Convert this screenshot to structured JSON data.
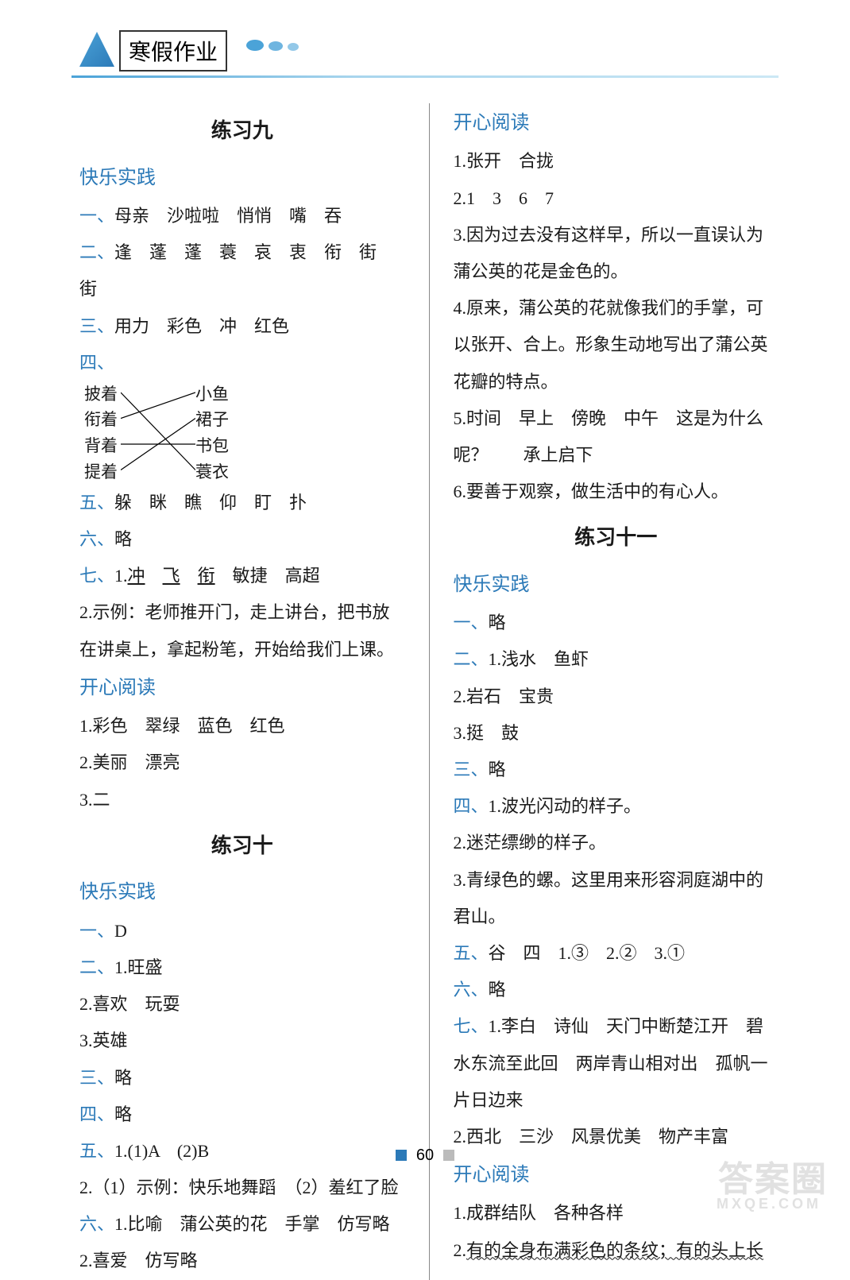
{
  "header": {
    "title": "寒假作业",
    "underline_color_start": "#4ba3d8",
    "underline_color_end": "#cce8f5"
  },
  "colors": {
    "accent": "#2c7ab8",
    "text": "#1a1a1a",
    "footer_blue": "#2c7ab8",
    "footer_gray": "#bbbbbb"
  },
  "left": {
    "ex9": {
      "title": "练习九",
      "practice_heading": "快乐实践",
      "l1_num": "一、",
      "l1": "母亲　沙啦啦　悄悄　嘴　吞",
      "l2_num": "二、",
      "l2": "逢　蓬　蓬　蓑　哀　衷　衔　街　街",
      "l3_num": "三、",
      "l3": "用力　彩色　冲　红色",
      "l4_num": "四、",
      "match": {
        "left": [
          "披着",
          "衔着",
          "背着",
          "提着"
        ],
        "right": [
          "小鱼",
          "裙子",
          "书包",
          "蓑衣"
        ],
        "edges": [
          [
            0,
            3
          ],
          [
            1,
            0
          ],
          [
            2,
            2
          ],
          [
            3,
            1
          ]
        ]
      },
      "l5_num": "五、",
      "l5": "躲　眯　瞧　仰　盯　扑",
      "l6_num": "六、",
      "l6": "略",
      "l7_num": "七、",
      "l7_1_prefix": "1.",
      "l7_1_u1": "冲",
      "l7_1_u2": "飞",
      "l7_1_u3": "衔",
      "l7_1_rest": "　敏捷　高超",
      "l7_2": "2.示例：老师推开门，走上讲台，把书放在讲桌上，拿起粉笔，开始给我们上课。",
      "reading_heading": "开心阅读",
      "r1": "1.彩色　翠绿　蓝色　红色",
      "r2": "2.美丽　漂亮",
      "r3": "3.二"
    },
    "ex10": {
      "title": "练习十",
      "practice_heading": "快乐实践",
      "l1_num": "一、",
      "l1": "D",
      "l2_num": "二、",
      "l2_1": "1.旺盛",
      "l2_2": "2.喜欢　玩耍",
      "l2_3": "3.英雄",
      "l3_num": "三、",
      "l3": "略",
      "l4_num": "四、",
      "l4": "略",
      "l5_num": "五、",
      "l5_1": "1.(1)A　(2)B",
      "l5_2": "2.（1）示例：快乐地舞蹈　（2）羞红了脸",
      "l6_num": "六、",
      "l6_1": "1.比喻　蒲公英的花　手掌　仿写略",
      "l6_2": "2.喜爱　仿写略"
    }
  },
  "right": {
    "reading_heading": "开心阅读",
    "r1": "1.张开　合拢",
    "r2": "2.1　3　6　7",
    "r3": "3.因为过去没有这样早，所以一直误认为蒲公英的花是金色的。",
    "r4": "4.原来，蒲公英的花就像我们的手掌，可以张开、合上。形象生动地写出了蒲公英花瓣的特点。",
    "r5": "5.时间　早上　傍晚　中午　这是为什么呢？　　承上启下",
    "r6": "6.要善于观察，做生活中的有心人。",
    "ex11": {
      "title": "练习十一",
      "practice_heading": "快乐实践",
      "l1_num": "一、",
      "l1": "略",
      "l2_num": "二、",
      "l2_1": "1.浅水　鱼虾",
      "l2_2": "2.岩石　宝贵",
      "l2_3": "3.挺　鼓",
      "l3_num": "三、",
      "l3": "略",
      "l4_num": "四、",
      "l4_1": "1.波光闪动的样子。",
      "l4_2": "2.迷茫缥缈的样子。",
      "l4_3": "3.青绿色的螺。这里用来形容洞庭湖中的君山。",
      "l5_num": "五、",
      "l5": "谷　四　1.③　2.②　3.①",
      "l6_num": "六、",
      "l6": "略",
      "l7_num": "七、",
      "l7_1": "1.李白　诗仙　天门中断楚江开　碧水东流至此回　两岸青山相对出　孤帆一片日边来",
      "l7_2": "2.西北　三沙　风景优美　物产丰富",
      "reading_heading": "开心阅读",
      "r1": "1.成群结队　各种各样",
      "r2_prefix": "2.",
      "r2_u": "有的全身布满彩色的条纹；有的头上长"
    }
  },
  "footer": {
    "page": "60"
  },
  "watermark": {
    "main": "答案圈",
    "sub": "MXQE.COM"
  }
}
